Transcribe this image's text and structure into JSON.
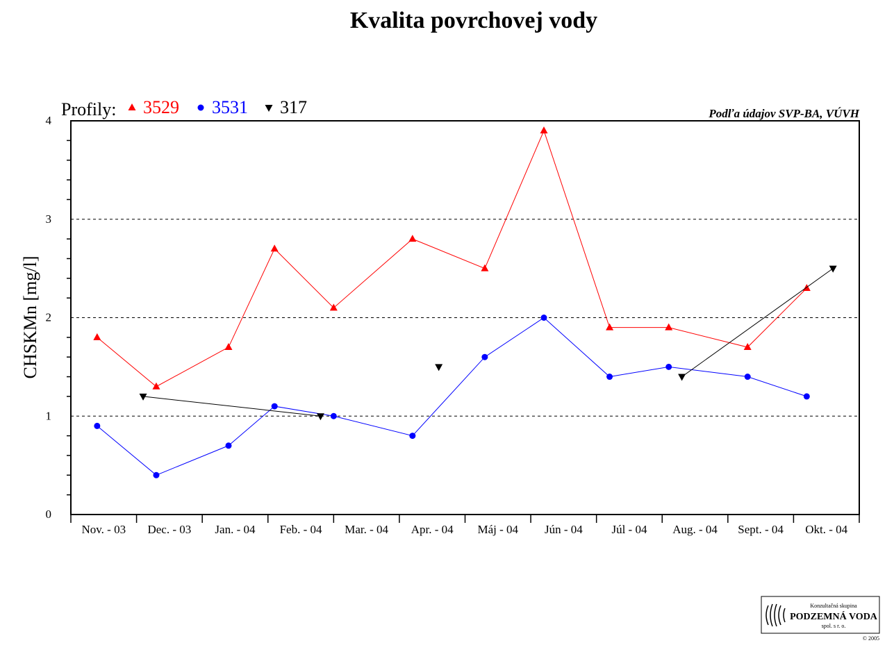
{
  "chart_data": {
    "type": "line",
    "title": "Kvalita povrchovej vody",
    "ylabel": "CHSKMn [mg/l]",
    "xlabel": "",
    "ylim": [
      0,
      4
    ],
    "yticks": [
      "0",
      "1",
      "2",
      "3",
      "4"
    ],
    "categories": [
      "Nov. - 03",
      "Dec. - 03",
      "Jan. - 04",
      "Feb. - 04",
      "Mar. - 04",
      "Apr. - 04",
      "Máj - 04",
      "Jún - 04",
      "Júl - 04",
      "Aug. - 04",
      "Sept. - 04",
      "Okt. - 04"
    ],
    "grid": "horizontal dashed at 1, 2, 3",
    "legend_title": "Profily:",
    "legend_placement": "top-left",
    "source": "Podľa údajov SVP-BA, VÚVH",
    "series": [
      {
        "name": "3529",
        "color": "#ff0000",
        "marker": "triangle-up",
        "points": [
          [
            0.4,
            1.8
          ],
          [
            1.3,
            1.3
          ],
          [
            2.4,
            1.7
          ],
          [
            3.1,
            2.7
          ],
          [
            4.0,
            2.1
          ],
          [
            5.2,
            2.8
          ],
          [
            6.3,
            2.5
          ],
          [
            7.2,
            3.9
          ],
          [
            8.2,
            1.9
          ],
          [
            9.1,
            1.9
          ],
          [
            10.3,
            1.7
          ],
          [
            11.2,
            2.3
          ]
        ]
      },
      {
        "name": "3531",
        "color": "#0000ff",
        "marker": "circle",
        "points": [
          [
            0.4,
            0.9
          ],
          [
            1.3,
            0.4
          ],
          [
            2.4,
            0.7
          ],
          [
            3.1,
            1.1
          ],
          [
            4.0,
            1.0
          ],
          [
            5.2,
            0.8
          ],
          [
            6.3,
            1.6
          ],
          [
            7.2,
            2.0
          ],
          [
            8.2,
            1.4
          ],
          [
            9.1,
            1.5
          ],
          [
            10.3,
            1.4
          ],
          [
            11.2,
            1.2
          ]
        ]
      },
      {
        "name": "317",
        "color": "#000000",
        "marker": "triangle-down",
        "points": [
          [
            1.1,
            1.2
          ],
          [
            3.8,
            1.0
          ],
          null,
          [
            5.6,
            1.5
          ],
          null,
          [
            9.3,
            1.4
          ],
          [
            11.6,
            2.5
          ]
        ]
      }
    ]
  },
  "logo": {
    "line1": "Konzultačná skupina",
    "line2": "PODZEMNÁ VODA",
    "line3": "spol. s r. o.",
    "copyright": "© 2005"
  }
}
